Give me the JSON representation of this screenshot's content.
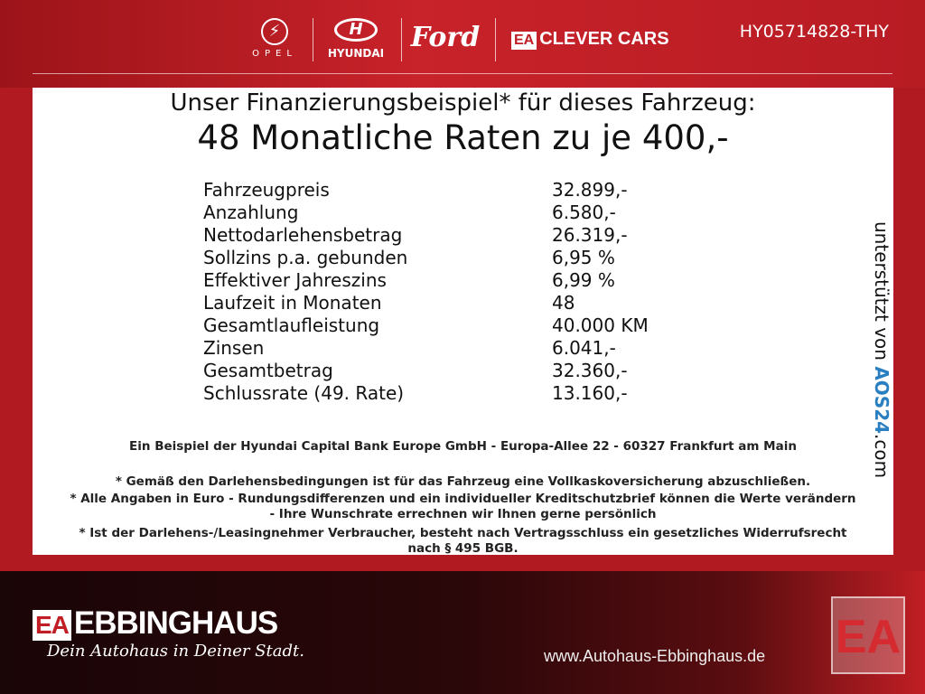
{
  "header": {
    "brands": [
      "OPEL",
      "HYUNDAI",
      "Ford",
      "CLEVER CARS"
    ],
    "clever_prefix": "EA",
    "vehicle_id": "HY05714828-THY"
  },
  "panel": {
    "title": "Unser Finanzierungsbeispiel* für dieses Fahrzeug:",
    "headline": "48 Monatliche Raten zu je 400,-",
    "rows": [
      {
        "label": "Fahrzeugpreis",
        "value": "32.899,-"
      },
      {
        "label": "Anzahlung",
        "value": "6.580,-"
      },
      {
        "label": "Nettodarlehensbetrag",
        "value": "26.319,-"
      },
      {
        "label": "Sollzins p.a. gebunden",
        "value": "6,95 %"
      },
      {
        "label": "Effektiver Jahreszins",
        "value": "6,99 %"
      },
      {
        "label": "Laufzeit in Monaten",
        "value": "48"
      },
      {
        "label": "Gesamtlaufleistung",
        "value": "40.000 KM"
      },
      {
        "label": "Zinsen",
        "value": "6.041,-"
      },
      {
        "label": "Gesamtbetrag",
        "value": "32.360,-"
      },
      {
        "label": "Schlussrate (49. Rate)",
        "value": "13.160,-"
      }
    ],
    "bank": "Ein Beispiel der Hyundai Capital Bank Europe GmbH - Europa-Allee 22 - 60327 Frankfurt am Main",
    "fine": [
      "* Gemäß den Darlehensbedingungen ist für das Fahrzeug eine Vollkaskoversicherung abzuschließen.",
      "* Alle Angaben in Euro - Rundungsdifferenzen und ein individueller Kreditschutzbrief können die Werte verändern",
      "- Ihre Wunschrate errechnen wir Ihnen gerne persönlich",
      "* Ist der Darlehens-/Leasingnehmer Verbraucher, besteht nach Vertragsschluss ein gesetzliches Widerrufsrecht",
      "nach § 495 BGB."
    ],
    "support_text": "unterstützt von",
    "support_brand": "AOS24",
    "support_tld": ".com"
  },
  "footer": {
    "logo_prefix": "EA",
    "dealer": "EBBINGHAUS",
    "slogan": "Dein Autohaus in Deiner Stadt.",
    "url": "www.Autohaus-Ebbinghaus.de",
    "big_logo": "EA"
  }
}
